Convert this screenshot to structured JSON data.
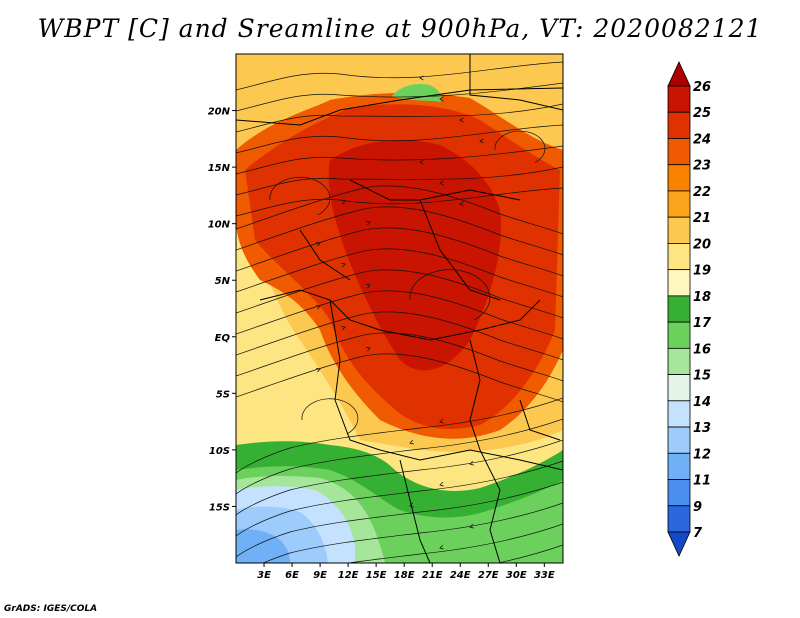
{
  "title": "WBPT [C] and Sreamline at 900hPa, VT: 2020082121",
  "credit": "GrADS: IGES/COLA",
  "map": {
    "lon_range": [
      0,
      35
    ],
    "lat_range": [
      -20,
      25
    ],
    "lat_ticks": [
      {
        "value": 20,
        "label": "20N"
      },
      {
        "value": 15,
        "label": "15N"
      },
      {
        "value": 10,
        "label": "10N"
      },
      {
        "value": 5,
        "label": "5N"
      },
      {
        "value": 0,
        "label": "EQ"
      },
      {
        "value": -5,
        "label": "5S"
      },
      {
        "value": -10,
        "label": "10S"
      },
      {
        "value": -15,
        "label": "15S"
      }
    ],
    "lon_ticks": [
      {
        "value": 3,
        "label": "3E"
      },
      {
        "value": 6,
        "label": "6E"
      },
      {
        "value": 9,
        "label": "9E"
      },
      {
        "value": 12,
        "label": "12E"
      },
      {
        "value": 15,
        "label": "15E"
      },
      {
        "value": 18,
        "label": "18E"
      },
      {
        "value": 21,
        "label": "21E"
      },
      {
        "value": 24,
        "label": "24E"
      },
      {
        "value": 27,
        "label": "27E"
      },
      {
        "value": 30,
        "label": "30E"
      },
      {
        "value": 33,
        "label": "33E"
      }
    ]
  },
  "colorbar": {
    "labels": [
      "26",
      "25",
      "24",
      "23",
      "22",
      "21",
      "20",
      "19",
      "18",
      "17",
      "16",
      "15",
      "14",
      "13",
      "12",
      "11",
      "9",
      "7"
    ],
    "colors": [
      "#ac0000",
      "#c81400",
      "#e03200",
      "#f05a00",
      "#fa8200",
      "#fca41c",
      "#fdc850",
      "#fde682",
      "#fff7be",
      "#36b033",
      "#6cd05c",
      "#a6e69a",
      "#e2f5e8",
      "#c4e2fe",
      "#9dcbfb",
      "#6fb0f6",
      "#4a8ef0",
      "#2a66de",
      "#1448c8"
    ]
  },
  "regions": {
    "colors": {
      "bg": "#fde682",
      "warm_belt": "#fdc850",
      "hot_outer": "#f05a00",
      "hot_core": "#e03200",
      "hot_peak": "#c81400",
      "green_dark": "#36b033",
      "green_mid": "#6cd05c",
      "green_light": "#a6e69a",
      "blue_light": "#c4e2fe",
      "blue_mid": "#9dcbfb",
      "blue_dark": "#6fb0f6"
    }
  }
}
